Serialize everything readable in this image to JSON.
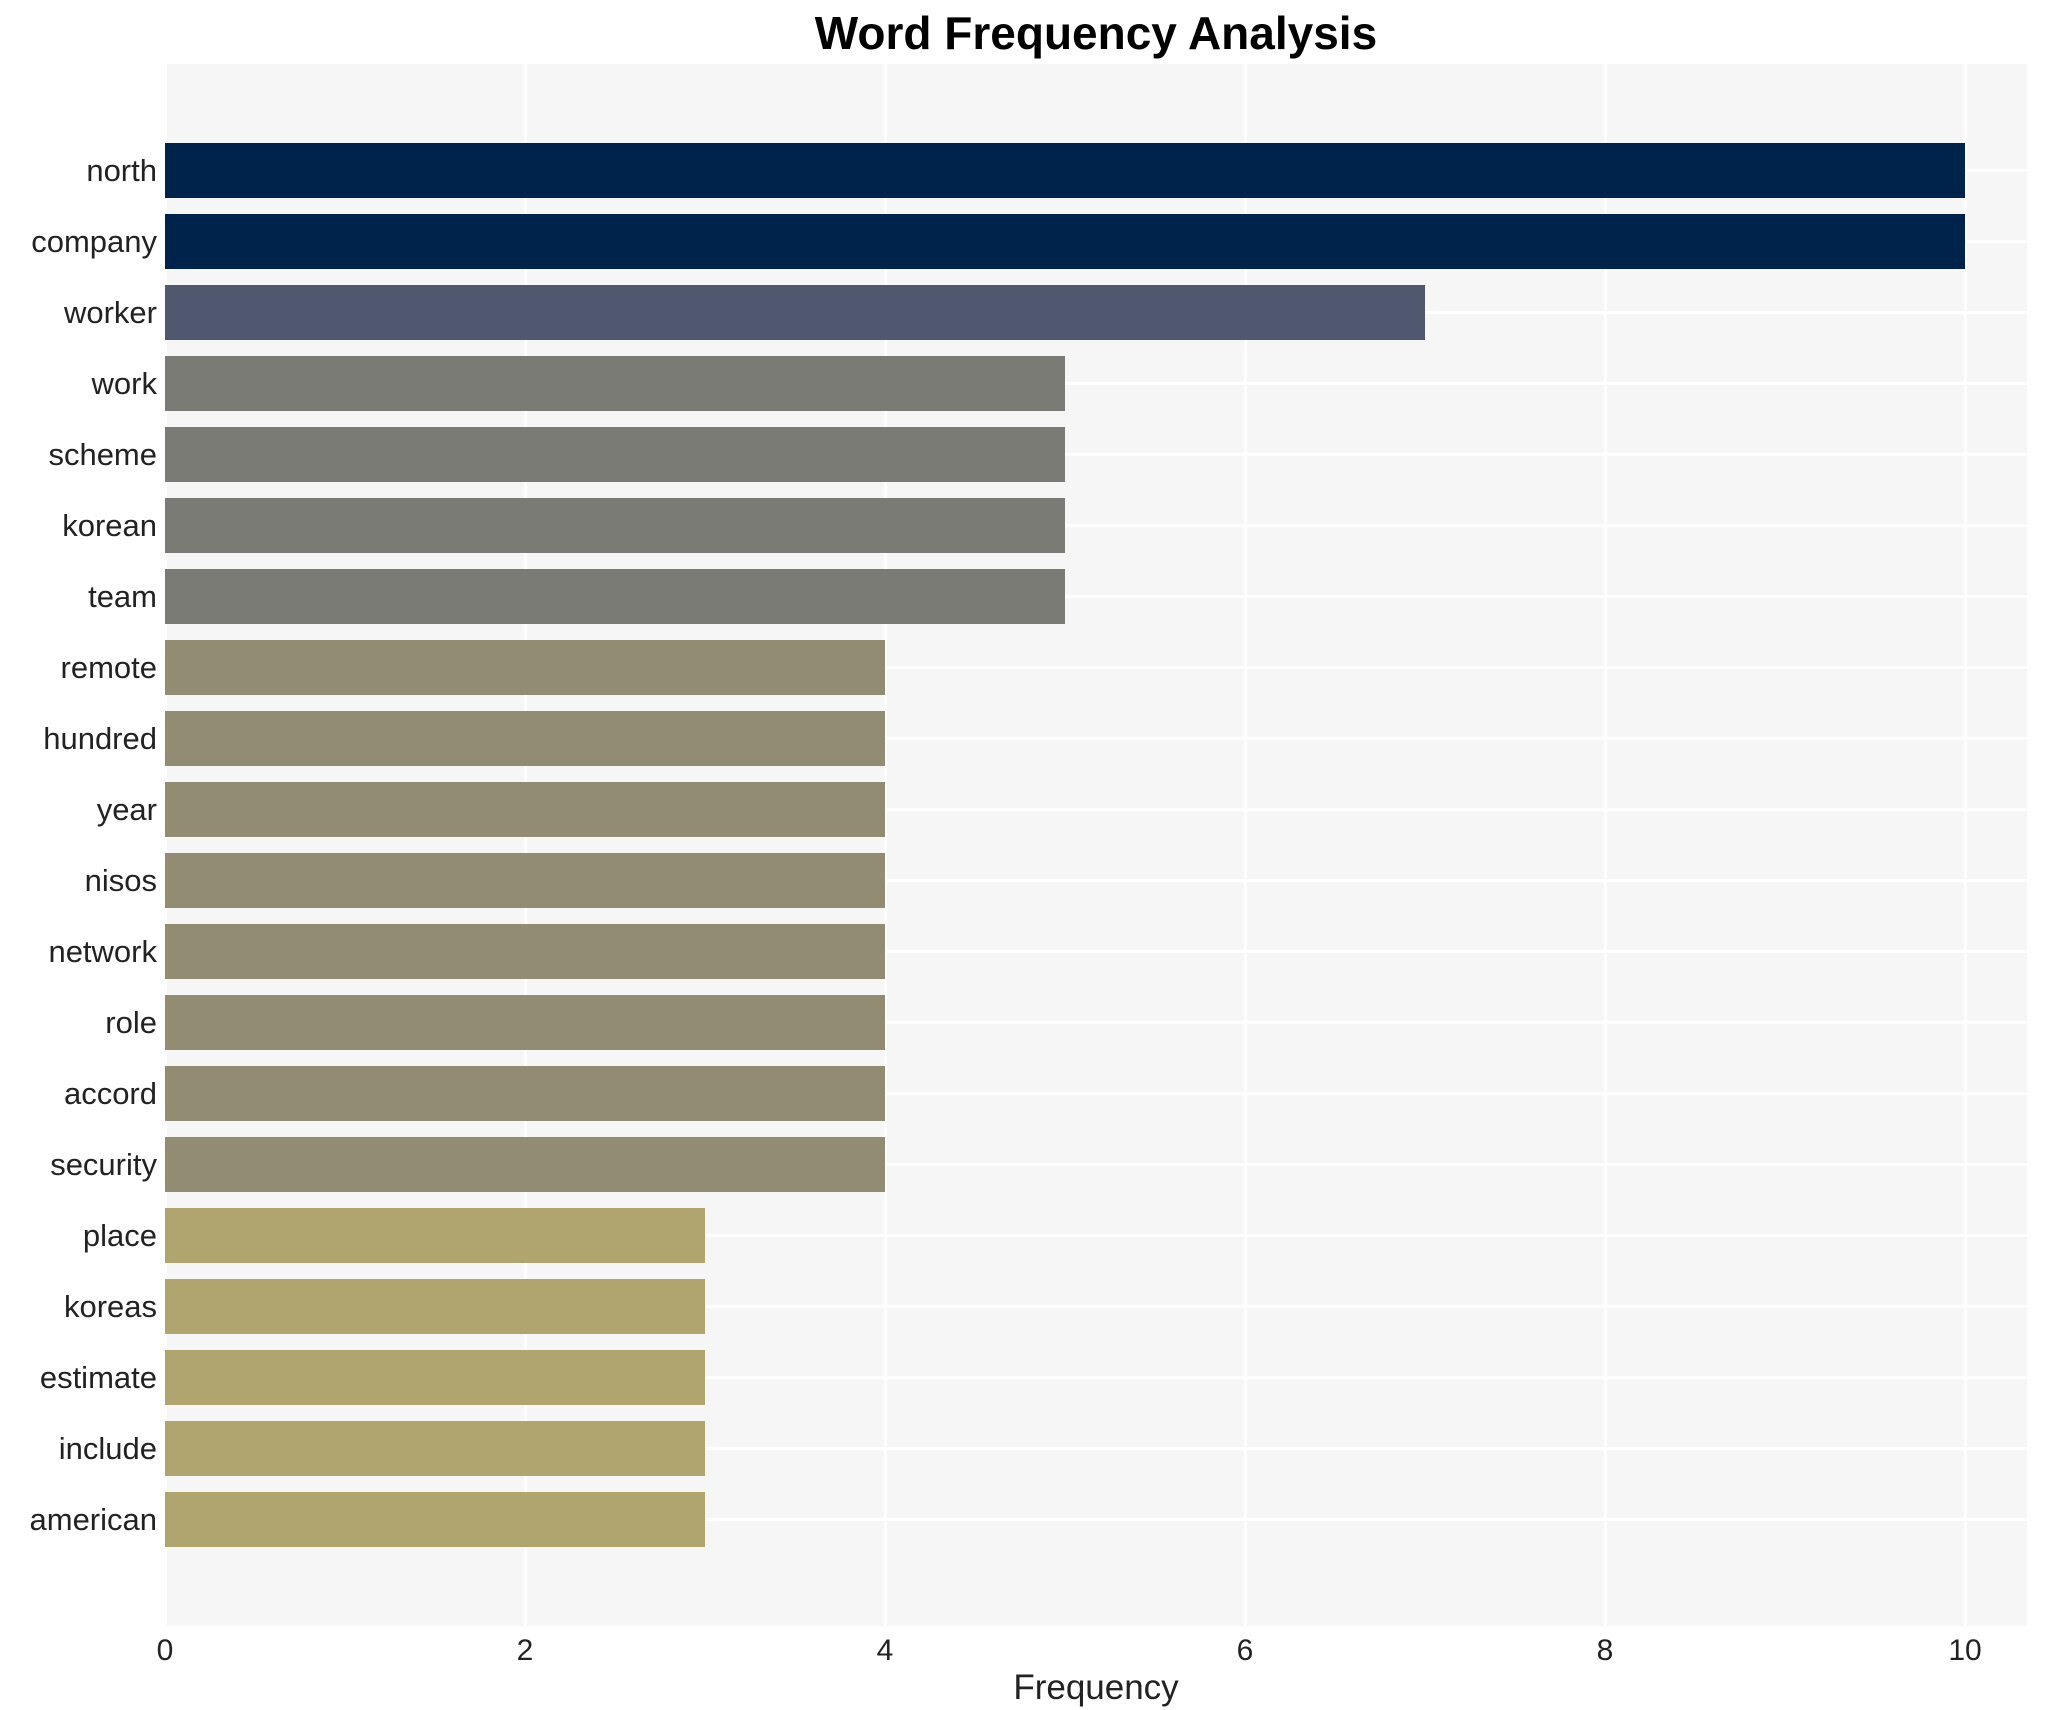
{
  "title": "Word Frequency Analysis",
  "chart_data": {
    "type": "bar",
    "orientation": "horizontal",
    "title": "Word Frequency Analysis",
    "xlabel": "Frequency",
    "ylabel": "",
    "categories": [
      "north",
      "company",
      "worker",
      "work",
      "scheme",
      "korean",
      "team",
      "remote",
      "hundred",
      "year",
      "nisos",
      "network",
      "role",
      "accord",
      "security",
      "place",
      "koreas",
      "estimate",
      "include",
      "american"
    ],
    "values": [
      10,
      10,
      7,
      5,
      5,
      5,
      5,
      4,
      4,
      4,
      4,
      4,
      4,
      4,
      4,
      3,
      3,
      3,
      3,
      3
    ],
    "x_ticks": [
      "0",
      "2",
      "4",
      "6",
      "8",
      "10"
    ],
    "x_tick_values": [
      0,
      2,
      4,
      6,
      8,
      10
    ],
    "xlim": [
      0,
      10.34
    ],
    "grid": true,
    "legend": false,
    "colors": {
      "plot_background": "#f6f6f7",
      "figure_background": "#ffffff",
      "gridline": "#ffffff",
      "text": "#222222",
      "title_text": "#000000"
    },
    "value_colors": {
      "10": "#00234c",
      "7": "#4f586e",
      "5": "#7b7b76",
      "4": "#928c73",
      "3": "#b0a56e"
    }
  }
}
